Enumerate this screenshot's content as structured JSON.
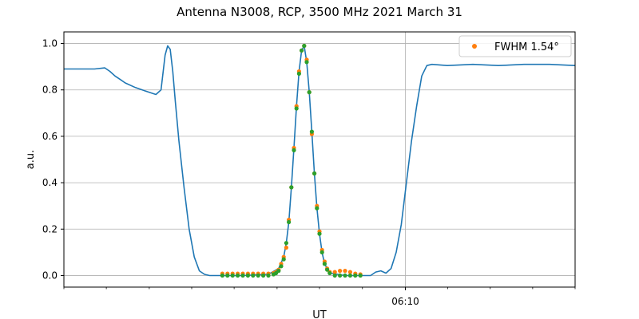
{
  "chart_data": {
    "type": "line",
    "title": "Antenna N3008, RCP, 3500 MHz 2021 March 31",
    "xlabel": "UT",
    "ylabel": "a.u.",
    "xlim": [
      0,
      1
    ],
    "ylim": [
      -0.05,
      1.05
    ],
    "x_ticks": [
      {
        "x": 0.668,
        "label": "06:10"
      }
    ],
    "x_minor_ticks": [
      0.0,
      0.083,
      0.167,
      0.25,
      0.333,
      0.417,
      0.5,
      0.584,
      0.751,
      0.834,
      0.917,
      1.0
    ],
    "y_ticks": [
      0.0,
      0.2,
      0.4,
      0.6,
      0.8,
      1.0
    ],
    "grid": true,
    "legend": {
      "position": "top-right",
      "entries": [
        {
          "label": "FWHM 1.54$^\\circ$",
          "display": "FWHM 1.54°",
          "marker_color": "#ff7f0e"
        }
      ]
    },
    "colors": {
      "line": "#1f77b4",
      "fit": "#ff7f0e",
      "samples": "#2ca02c"
    },
    "series": [
      {
        "type": "line",
        "x": [
          0.0,
          0.02,
          0.04,
          0.06,
          0.08,
          0.09,
          0.1,
          0.11,
          0.12,
          0.14,
          0.16,
          0.18,
          0.19,
          0.198,
          0.203,
          0.208,
          0.213,
          0.218,
          0.225,
          0.235,
          0.245,
          0.255,
          0.265,
          0.275,
          0.285,
          0.295,
          0.305,
          0.32,
          0.35,
          0.4,
          0.42,
          0.43,
          0.435,
          0.44,
          0.445,
          0.45,
          0.455,
          0.46,
          0.465,
          0.47,
          0.475,
          0.48,
          0.485,
          0.49,
          0.495,
          0.5,
          0.505,
          0.51,
          0.52,
          0.55,
          0.58,
          0.6,
          0.61,
          0.62,
          0.63,
          0.64,
          0.65,
          0.66,
          0.67,
          0.68,
          0.69,
          0.7,
          0.71,
          0.72,
          0.75,
          0.8,
          0.85,
          0.9,
          0.95,
          1.0
        ],
        "y": [
          0.89,
          0.89,
          0.89,
          0.89,
          0.895,
          0.88,
          0.86,
          0.845,
          0.83,
          0.81,
          0.795,
          0.78,
          0.8,
          0.95,
          0.99,
          0.975,
          0.88,
          0.75,
          0.58,
          0.38,
          0.2,
          0.08,
          0.02,
          0.005,
          0.0,
          0.0,
          0.0,
          0.0,
          0.0,
          0.005,
          0.03,
          0.08,
          0.14,
          0.23,
          0.38,
          0.55,
          0.73,
          0.88,
          0.97,
          0.99,
          0.92,
          0.79,
          0.62,
          0.44,
          0.29,
          0.18,
          0.1,
          0.05,
          0.01,
          0.0,
          0.0,
          0.0,
          0.015,
          0.02,
          0.01,
          0.03,
          0.1,
          0.22,
          0.4,
          0.58,
          0.73,
          0.86,
          0.905,
          0.91,
          0.905,
          0.91,
          0.905,
          0.91,
          0.91,
          0.905
        ]
      },
      {
        "type": "scatter",
        "name": "FWHM 1.54$^\\circ$",
        "x": [
          0.31,
          0.32,
          0.33,
          0.34,
          0.35,
          0.36,
          0.37,
          0.38,
          0.39,
          0.4,
          0.41,
          0.415,
          0.42,
          0.425,
          0.43,
          0.435,
          0.44,
          0.445,
          0.45,
          0.455,
          0.46,
          0.465,
          0.47,
          0.475,
          0.48,
          0.485,
          0.49,
          0.495,
          0.5,
          0.505,
          0.51,
          0.515,
          0.52,
          0.53,
          0.54,
          0.55,
          0.56,
          0.57,
          0.58
        ],
        "y": [
          0.008,
          0.008,
          0.008,
          0.008,
          0.008,
          0.008,
          0.008,
          0.008,
          0.008,
          0.008,
          0.01,
          0.015,
          0.025,
          0.05,
          0.08,
          0.12,
          0.24,
          0.38,
          0.55,
          0.73,
          0.88,
          0.97,
          0.99,
          0.93,
          0.79,
          0.61,
          0.44,
          0.3,
          0.19,
          0.11,
          0.06,
          0.03,
          0.015,
          0.015,
          0.02,
          0.02,
          0.015,
          0.008,
          0.005
        ]
      },
      {
        "type": "scatter",
        "x": [
          0.31,
          0.32,
          0.33,
          0.34,
          0.35,
          0.36,
          0.37,
          0.38,
          0.39,
          0.4,
          0.41,
          0.415,
          0.42,
          0.425,
          0.43,
          0.435,
          0.44,
          0.445,
          0.45,
          0.455,
          0.46,
          0.465,
          0.47,
          0.475,
          0.48,
          0.485,
          0.49,
          0.495,
          0.5,
          0.505,
          0.51,
          0.515,
          0.52,
          0.53,
          0.54,
          0.55,
          0.56,
          0.57,
          0.58
        ],
        "y": [
          0.0,
          0.0,
          0.0,
          0.0,
          0.0,
          0.0,
          0.0,
          0.0,
          0.0,
          0.0,
          0.005,
          0.01,
          0.02,
          0.04,
          0.07,
          0.14,
          0.23,
          0.38,
          0.54,
          0.72,
          0.87,
          0.97,
          0.99,
          0.92,
          0.79,
          0.62,
          0.44,
          0.29,
          0.18,
          0.1,
          0.05,
          0.025,
          0.01,
          0.0,
          0.0,
          0.0,
          0.0,
          0.0,
          0.0
        ]
      }
    ]
  }
}
